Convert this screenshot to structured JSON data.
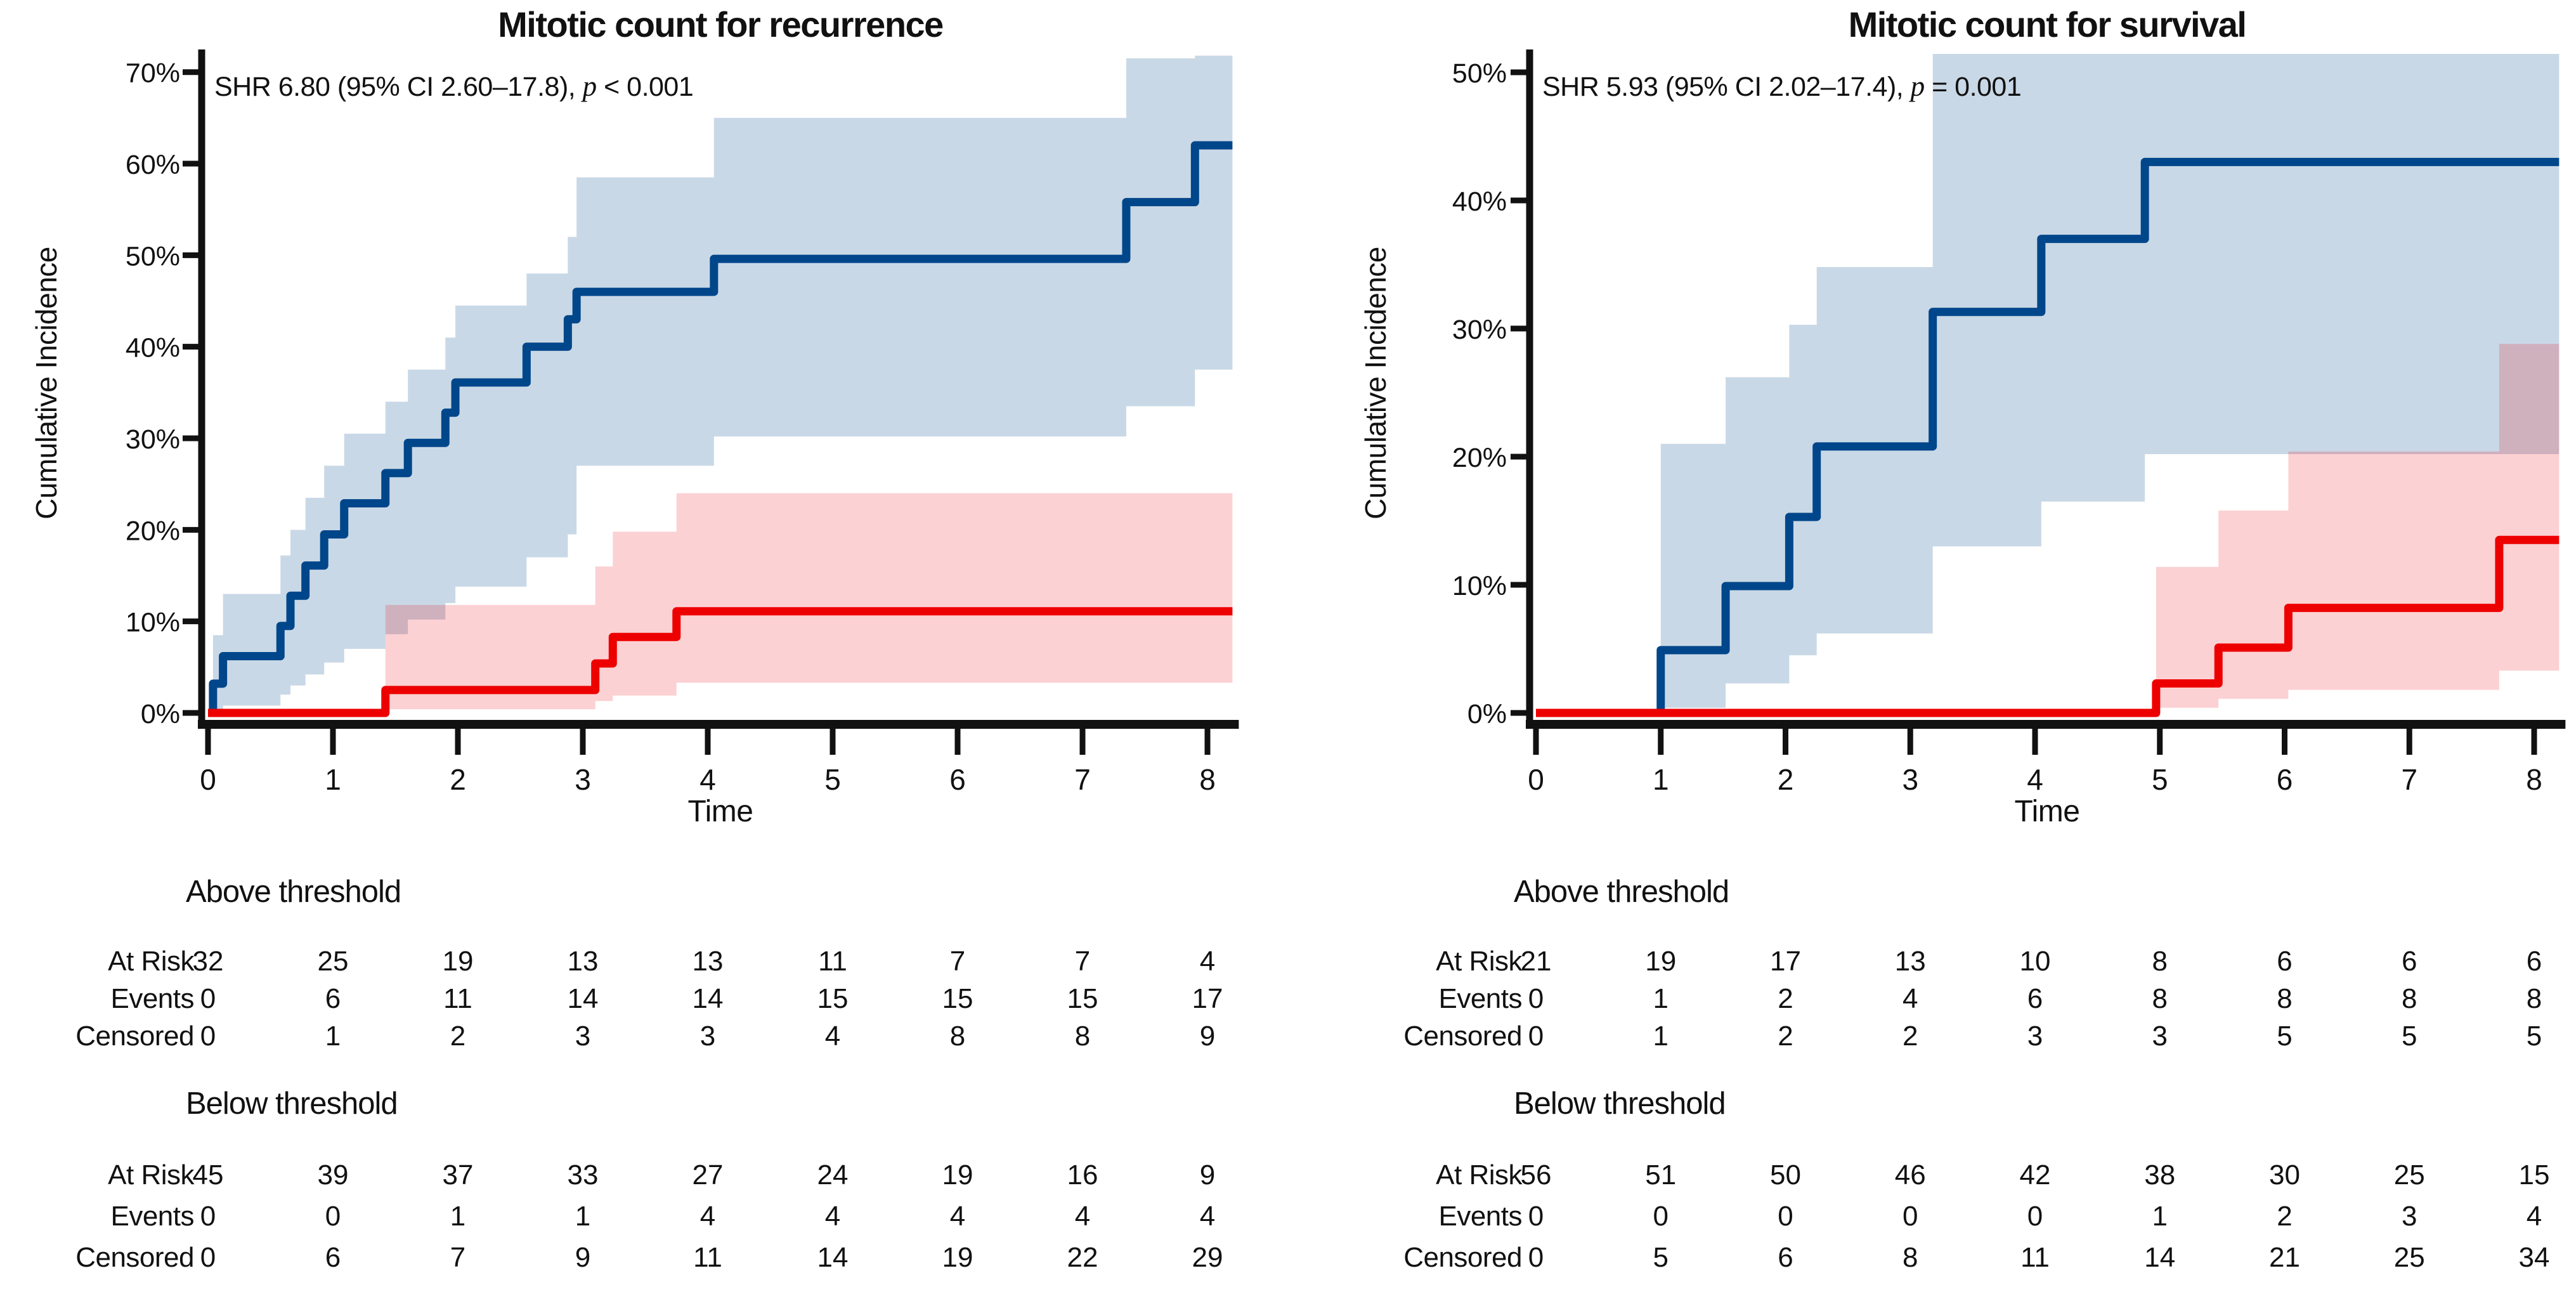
{
  "chart_data": {
    "type": "line",
    "subtype": "cumulative-incidence-step-curves-with-95ci-bands",
    "colors": {
      "above_line": "#00468B",
      "below_line": "#ED0000",
      "above_band": "rgba(0,70,139,0.21)",
      "below_band": "rgba(237,0,13,0.18)",
      "axis": "#111111"
    },
    "panels": [
      {
        "title": "Mitotic count for recurrence",
        "annotation": {
          "prefix": "SHR 6.80 (95% CI 2.60–17.8), ",
          "p": "p",
          "rest": " < 0.001"
        },
        "xlabel": "Time",
        "ylabel": "Cumulative Incidence",
        "xticks": [
          0,
          1,
          2,
          3,
          4,
          5,
          6,
          7,
          8
        ],
        "yticks": [
          0,
          10,
          20,
          30,
          40,
          50,
          60,
          70
        ],
        "xlim": [
          0,
          8.2
        ],
        "ylim": [
          0,
          72
        ],
        "grid": false,
        "series": [
          {
            "name": "Above threshold",
            "steps": [
              [
                0.04,
                3.2
              ],
              [
                0.12,
                6.2
              ],
              [
                0.58,
                9.5
              ],
              [
                0.66,
                12.8
              ],
              [
                0.78,
                16.1
              ],
              [
                0.93,
                19.5
              ],
              [
                1.09,
                22.9
              ],
              [
                1.42,
                26.2
              ],
              [
                1.6,
                29.5
              ],
              [
                1.9,
                32.8
              ],
              [
                1.98,
                36.1
              ],
              [
                2.55,
                40.0
              ],
              [
                2.88,
                43.0
              ],
              [
                2.95,
                46.0
              ],
              [
                4.05,
                49.6
              ],
              [
                7.35,
                55.8
              ],
              [
                7.9,
                62.0
              ]
            ],
            "band": [
              [
                0.04,
                0.2,
                8.5
              ],
              [
                0.12,
                0.8,
                13.0
              ],
              [
                0.58,
                2.0,
                17.2
              ],
              [
                0.66,
                3.0,
                20.0
              ],
              [
                0.78,
                4.2,
                23.5
              ],
              [
                0.93,
                5.5,
                27.0
              ],
              [
                1.09,
                7.0,
                30.5
              ],
              [
                1.42,
                8.6,
                34.0
              ],
              [
                1.6,
                10.2,
                37.5
              ],
              [
                1.9,
                12.0,
                41.0
              ],
              [
                1.98,
                13.8,
                44.5
              ],
              [
                2.55,
                17.0,
                48.0
              ],
              [
                2.88,
                19.5,
                52.0
              ],
              [
                2.95,
                27.0,
                58.5
              ],
              [
                4.05,
                30.2,
                65.0
              ],
              [
                7.35,
                33.5,
                71.5
              ],
              [
                7.9,
                37.5,
                71.8
              ]
            ]
          },
          {
            "name": "Below threshold",
            "steps": [
              [
                1.42,
                2.5
              ],
              [
                3.1,
                5.4
              ],
              [
                3.24,
                8.3
              ],
              [
                3.75,
                11.1
              ]
            ],
            "band": [
              [
                1.42,
                0.4,
                11.8
              ],
              [
                3.1,
                1.3,
                16.0
              ],
              [
                3.24,
                1.9,
                19.8
              ],
              [
                3.75,
                3.3,
                24.0
              ]
            ]
          }
        ],
        "risk_table": {
          "groups": [
            {
              "label": "Above threshold",
              "rows": [
                {
                  "label": "At Risk",
                  "values": [
                    32,
                    25,
                    19,
                    13,
                    13,
                    11,
                    7,
                    7,
                    4
                  ]
                },
                {
                  "label": "Events",
                  "values": [
                    0,
                    6,
                    11,
                    14,
                    14,
                    15,
                    15,
                    15,
                    17
                  ]
                },
                {
                  "label": "Censored",
                  "values": [
                    0,
                    1,
                    2,
                    3,
                    3,
                    4,
                    8,
                    8,
                    9
                  ]
                }
              ]
            },
            {
              "label": "Below threshold",
              "rows": [
                {
                  "label": "At Risk",
                  "values": [
                    45,
                    39,
                    37,
                    33,
                    27,
                    24,
                    19,
                    16,
                    9
                  ]
                },
                {
                  "label": "Events",
                  "values": [
                    0,
                    0,
                    1,
                    1,
                    4,
                    4,
                    4,
                    4,
                    4
                  ]
                },
                {
                  "label": "Censored",
                  "values": [
                    0,
                    6,
                    7,
                    9,
                    11,
                    14,
                    19,
                    22,
                    29
                  ]
                }
              ]
            }
          ]
        }
      },
      {
        "title": "Mitotic count for survival",
        "annotation": {
          "prefix": "SHR 5.93 (95% CI 2.02–17.4), ",
          "p": "p",
          "rest": " = 0.001"
        },
        "xlabel": "Time",
        "ylabel": "Cumulative Incidence",
        "xticks": [
          0,
          1,
          2,
          3,
          4,
          5,
          6,
          7,
          8
        ],
        "yticks": [
          0,
          10,
          20,
          30,
          40,
          50
        ],
        "xlim": [
          0,
          8.2
        ],
        "ylim": [
          0,
          51.4
        ],
        "grid": false,
        "series": [
          {
            "name": "Above threshold",
            "steps": [
              [
                1.0,
                4.9
              ],
              [
                1.52,
                9.9
              ],
              [
                2.03,
                15.3
              ],
              [
                2.25,
                20.8
              ],
              [
                3.18,
                31.3
              ],
              [
                4.05,
                37.0
              ],
              [
                4.88,
                43.0
              ]
            ],
            "band": [
              [
                1.0,
                0.4,
                21.0
              ],
              [
                1.52,
                2.3,
                26.2
              ],
              [
                2.03,
                4.5,
                30.3
              ],
              [
                2.25,
                6.2,
                34.8
              ],
              [
                3.18,
                13.0,
                53.0
              ],
              [
                4.05,
                16.5,
                53.0
              ],
              [
                4.88,
                20.2,
                53.0
              ]
            ]
          },
          {
            "name": "Below threshold",
            "steps": [
              [
                4.97,
                2.3
              ],
              [
                5.47,
                5.1
              ],
              [
                6.03,
                8.2
              ],
              [
                7.72,
                13.5
              ]
            ],
            "band": [
              [
                4.97,
                0.4,
                11.4
              ],
              [
                5.47,
                1.1,
                15.8
              ],
              [
                6.03,
                1.8,
                20.4
              ],
              [
                7.72,
                3.3,
                28.8
              ]
            ]
          }
        ],
        "risk_table": {
          "groups": [
            {
              "label": "Above threshold",
              "rows": [
                {
                  "label": "At Risk",
                  "values": [
                    21,
                    19,
                    17,
                    13,
                    10,
                    8,
                    6,
                    6,
                    6
                  ]
                },
                {
                  "label": "Events",
                  "values": [
                    0,
                    1,
                    2,
                    4,
                    6,
                    8,
                    8,
                    8,
                    8
                  ]
                },
                {
                  "label": "Censored",
                  "values": [
                    0,
                    1,
                    2,
                    2,
                    3,
                    3,
                    5,
                    5,
                    5
                  ]
                }
              ]
            },
            {
              "label": "Below threshold",
              "rows": [
                {
                  "label": "At Risk",
                  "values": [
                    56,
                    51,
                    50,
                    46,
                    42,
                    38,
                    30,
                    25,
                    15
                  ]
                },
                {
                  "label": "Events",
                  "values": [
                    0,
                    0,
                    0,
                    0,
                    0,
                    1,
                    2,
                    3,
                    4
                  ]
                },
                {
                  "label": "Censored",
                  "values": [
                    0,
                    5,
                    6,
                    8,
                    11,
                    14,
                    21,
                    25,
                    34
                  ]
                }
              ]
            }
          ]
        }
      }
    ]
  }
}
